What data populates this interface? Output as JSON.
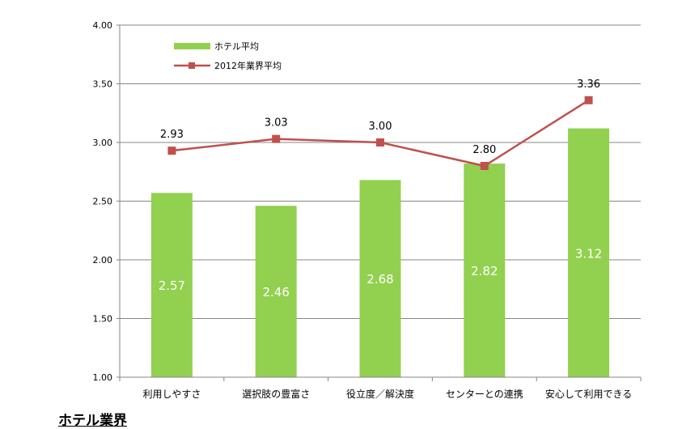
{
  "chart_data": {
    "type": "bar",
    "categories": [
      "利用しやすさ",
      "選択肢の豊富さ",
      "役立度／解決度",
      "センターとの連携",
      "安心して利用できる"
    ],
    "series": [
      {
        "name": "ホテル平均",
        "type": "bar",
        "color": "#92d050",
        "values": [
          2.57,
          2.46,
          2.68,
          2.82,
          3.12
        ]
      },
      {
        "name": "2012年業界平均",
        "type": "line",
        "color": "#c0504d",
        "values": [
          2.93,
          3.03,
          3.0,
          2.8,
          3.36
        ]
      }
    ],
    "ylim": [
      1.0,
      4.0
    ],
    "yticks": [
      "1.00",
      "1.50",
      "2.00",
      "2.50",
      "3.00",
      "3.50",
      "4.00"
    ],
    "grid": true,
    "legend_position": "top-left",
    "xlabel": "",
    "ylabel": ""
  },
  "caption": "ホテル業界"
}
